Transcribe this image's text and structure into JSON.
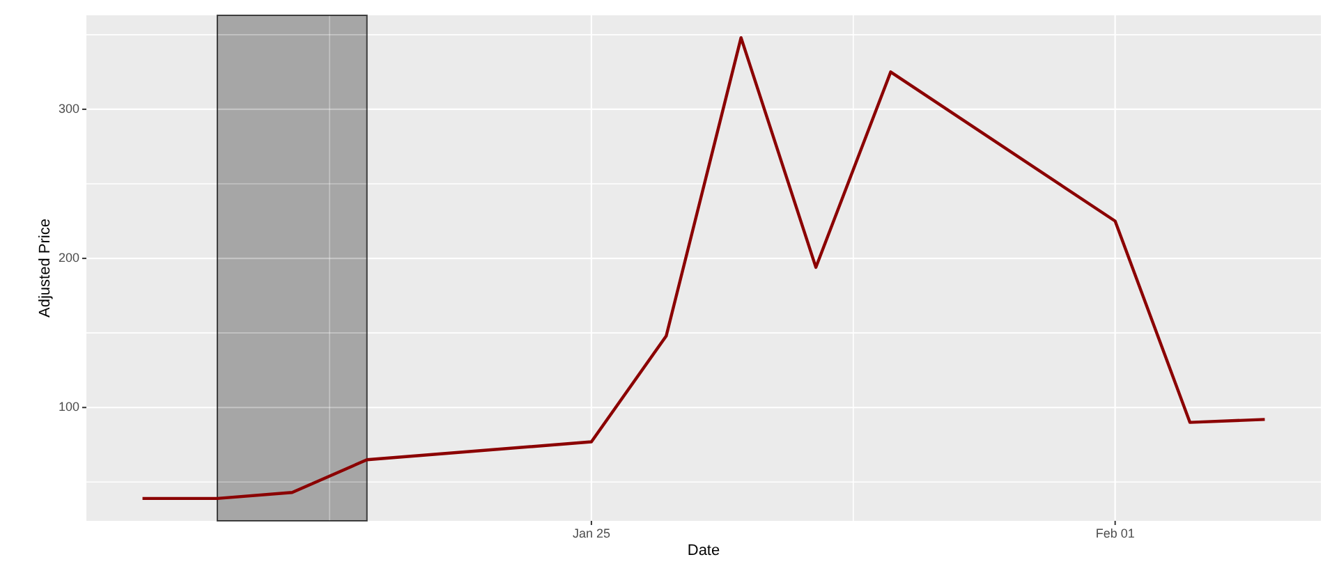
{
  "chart_data": {
    "type": "line",
    "xlabel": "Date",
    "ylabel": "Adjusted Price",
    "x": [
      "--01-19",
      "--01-20",
      "--01-21",
      "--01-22",
      "--01-25",
      "--01-26",
      "--01-27",
      "--01-28",
      "--01-29",
      "--02-01",
      "--02-02",
      "--02-03"
    ],
    "values": [
      39,
      39,
      43,
      65,
      77,
      148,
      348,
      194,
      325,
      225,
      90,
      92
    ],
    "color": "#8b0000",
    "xlim": [
      "--01-18T06:00",
      "--02-03T18:00"
    ],
    "xticks": [
      {
        "value": "--01-21T12:00",
        "label": null
      },
      {
        "value": "--01-25",
        "label": "Jan 25"
      },
      {
        "value": "--01-28T12:00",
        "label": null
      },
      {
        "value": "--02-01",
        "label": "Feb 01"
      }
    ],
    "ylim": [
      24,
      363
    ],
    "yticks": [
      {
        "value": 50,
        "label": null
      },
      100,
      {
        "value": 150,
        "label": null
      },
      200,
      {
        "value": 250,
        "label": null
      },
      300,
      {
        "value": 350,
        "label": null
      }
    ],
    "grid": true,
    "bands": [
      {
        "axis": "x",
        "from": "--01-20",
        "to": "--01-22",
        "color": "#a6a6a6"
      }
    ]
  }
}
